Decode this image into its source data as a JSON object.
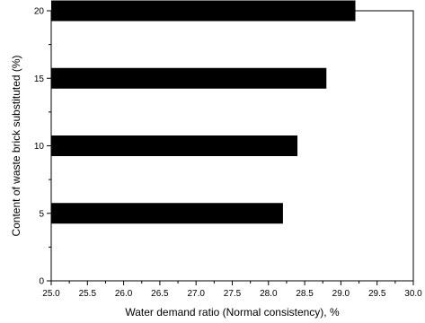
{
  "chart_data": {
    "type": "bar",
    "orientation": "horizontal",
    "xlabel": "Water demand ratio (Normal consistency), %",
    "ylabel": "Content of waste brick substituted (%)",
    "xlim": [
      25.0,
      30.0
    ],
    "ylim": [
      0,
      20
    ],
    "x_ticks": [
      "25.0",
      "25.5",
      "26.0",
      "26.5",
      "27.0",
      "27.5",
      "28.0",
      "28.5",
      "29.0",
      "29.5",
      "30.0"
    ],
    "y_ticks": [
      "0",
      "5",
      "10",
      "15",
      "20"
    ],
    "categories": [
      5,
      10,
      15,
      20
    ],
    "values": [
      28.2,
      28.4,
      28.8,
      29.2
    ],
    "bar_color": "#000000",
    "grid": false,
    "legend": "none"
  }
}
